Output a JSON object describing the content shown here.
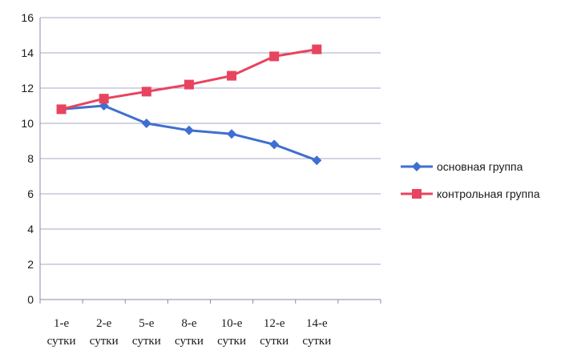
{
  "chart_data": {
    "type": "line",
    "categories": [
      [
        "1-е",
        "сутки"
      ],
      [
        "2-е",
        "сутки"
      ],
      [
        "5-е",
        "сутки"
      ],
      [
        "8-е",
        "сутки"
      ],
      [
        "10-е",
        "сутки"
      ],
      [
        "12-е",
        "сутки"
      ],
      [
        "14-е",
        "сутки"
      ]
    ],
    "series": [
      {
        "name": "основная группа",
        "values": [
          10.8,
          11.0,
          10.0,
          9.6,
          9.4,
          8.8,
          7.9
        ],
        "color": "#3f6fd0",
        "marker": "diamond"
      },
      {
        "name": "контрольная группа",
        "values": [
          10.8,
          11.4,
          11.8,
          12.2,
          12.7,
          13.8,
          14.2
        ],
        "color": "#e8445f",
        "marker": "square"
      }
    ],
    "ylim": [
      0,
      16
    ],
    "yticks": [
      "0",
      "2",
      "4",
      "6",
      "8",
      "10",
      "12",
      "14",
      "16"
    ],
    "grid": true,
    "legend_position": "right"
  }
}
